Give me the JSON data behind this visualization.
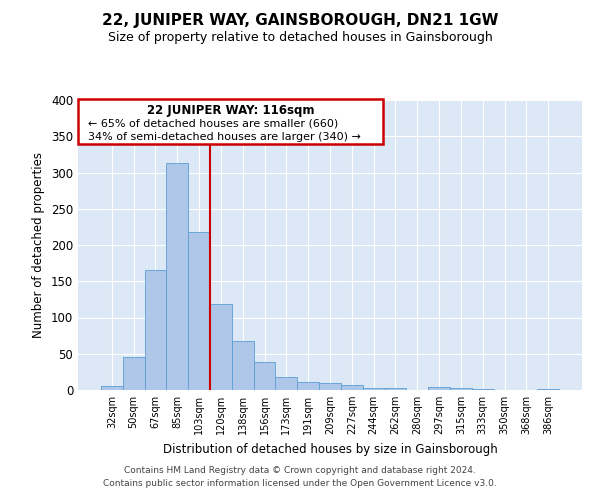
{
  "title": "22, JUNIPER WAY, GAINSBOROUGH, DN21 1GW",
  "subtitle": "Size of property relative to detached houses in Gainsborough",
  "xlabel": "Distribution of detached houses by size in Gainsborough",
  "ylabel": "Number of detached properties",
  "bar_labels": [
    "32sqm",
    "50sqm",
    "67sqm",
    "85sqm",
    "103sqm",
    "120sqm",
    "138sqm",
    "156sqm",
    "173sqm",
    "191sqm",
    "209sqm",
    "227sqm",
    "244sqm",
    "262sqm",
    "280sqm",
    "297sqm",
    "315sqm",
    "333sqm",
    "350sqm",
    "368sqm",
    "386sqm"
  ],
  "bar_values": [
    5,
    46,
    165,
    313,
    218,
    119,
    67,
    38,
    18,
    11,
    10,
    7,
    3,
    3,
    0,
    4,
    3,
    1,
    0,
    0,
    2
  ],
  "bar_color": "#aec6e8",
  "bar_edge_color": "#5a9fd4",
  "background_color": "#dce8f5",
  "ylim": [
    0,
    400
  ],
  "yticks": [
    0,
    50,
    100,
    150,
    200,
    250,
    300,
    350,
    400
  ],
  "vline_x": 4.5,
  "vline_color": "#cc0000",
  "annotation_title": "22 JUNIPER WAY: 116sqm",
  "annotation_line1": "← 65% of detached houses are smaller (660)",
  "annotation_line2": "34% of semi-detached houses are larger (340) →",
  "annotation_box_color": "#cc0000",
  "footer_line1": "Contains HM Land Registry data © Crown copyright and database right 2024.",
  "footer_line2": "Contains public sector information licensed under the Open Government Licence v3.0."
}
